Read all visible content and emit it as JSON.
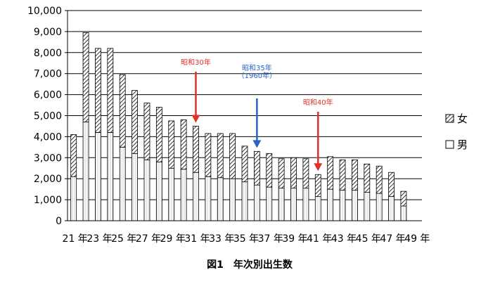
{
  "chart_data": {
    "type": "bar",
    "stacked": true,
    "title": "図1　年次別出生数",
    "xlabel": "",
    "ylabel": "",
    "ylim": [
      0,
      10000
    ],
    "yticks": [
      "0",
      "1,000",
      "2,000",
      "3,000",
      "4,000",
      "5,000",
      "6,000",
      "7,000",
      "8,000",
      "9,000",
      "10,000"
    ],
    "categories": [
      "21",
      "22",
      "23",
      "24",
      "25",
      "26",
      "27",
      "28",
      "29",
      "30",
      "31",
      "32",
      "33",
      "34",
      "35",
      "36",
      "37",
      "38",
      "39",
      "40",
      "41",
      "42",
      "43",
      "44",
      "45",
      "46",
      "47",
      "48",
      "49"
    ],
    "xtick_labels": [
      "21 年",
      "23 年",
      "25 年",
      "27 年",
      "29 年",
      "31 年",
      "33 年",
      "35 年",
      "37 年",
      "39 年",
      "41 年",
      "43 年",
      "45 年",
      "47 年",
      "49 年"
    ],
    "xtick_index": [
      0,
      2,
      4,
      6,
      8,
      10,
      12,
      14,
      16,
      18,
      20,
      22,
      24,
      26,
      28
    ],
    "series": [
      {
        "name": "男",
        "values": [
          2100,
          4700,
          4200,
          4200,
          3500,
          3200,
          2900,
          2800,
          2500,
          2450,
          2300,
          2100,
          2050,
          2000,
          1850,
          1700,
          1600,
          1550,
          1550,
          1550,
          1150,
          1500,
          1450,
          1450,
          1350,
          1300,
          1150,
          700,
          0
        ]
      },
      {
        "name": "女",
        "values": [
          2000,
          4250,
          4000,
          4000,
          3450,
          3000,
          2700,
          2600,
          2250,
          2350,
          2200,
          2050,
          2100,
          2150,
          1700,
          1600,
          1600,
          1400,
          1450,
          1400,
          1050,
          1550,
          1450,
          1450,
          1350,
          1300,
          1150,
          700,
          0
        ]
      }
    ],
    "legend": {
      "position": "right",
      "items": [
        {
          "label": "女",
          "pattern": "hatch"
        },
        {
          "label": "男",
          "pattern": "plain"
        }
      ]
    },
    "annotations": [
      {
        "label": "昭和30年",
        "color": "#e0302a",
        "category": "31"
      },
      {
        "label": "昭和35年",
        "sublabel": "（1960年）",
        "color": "#2b62c9",
        "category": "36"
      },
      {
        "label": "昭和40年",
        "color": "#e0302a",
        "category": "41"
      }
    ],
    "grid": true
  }
}
